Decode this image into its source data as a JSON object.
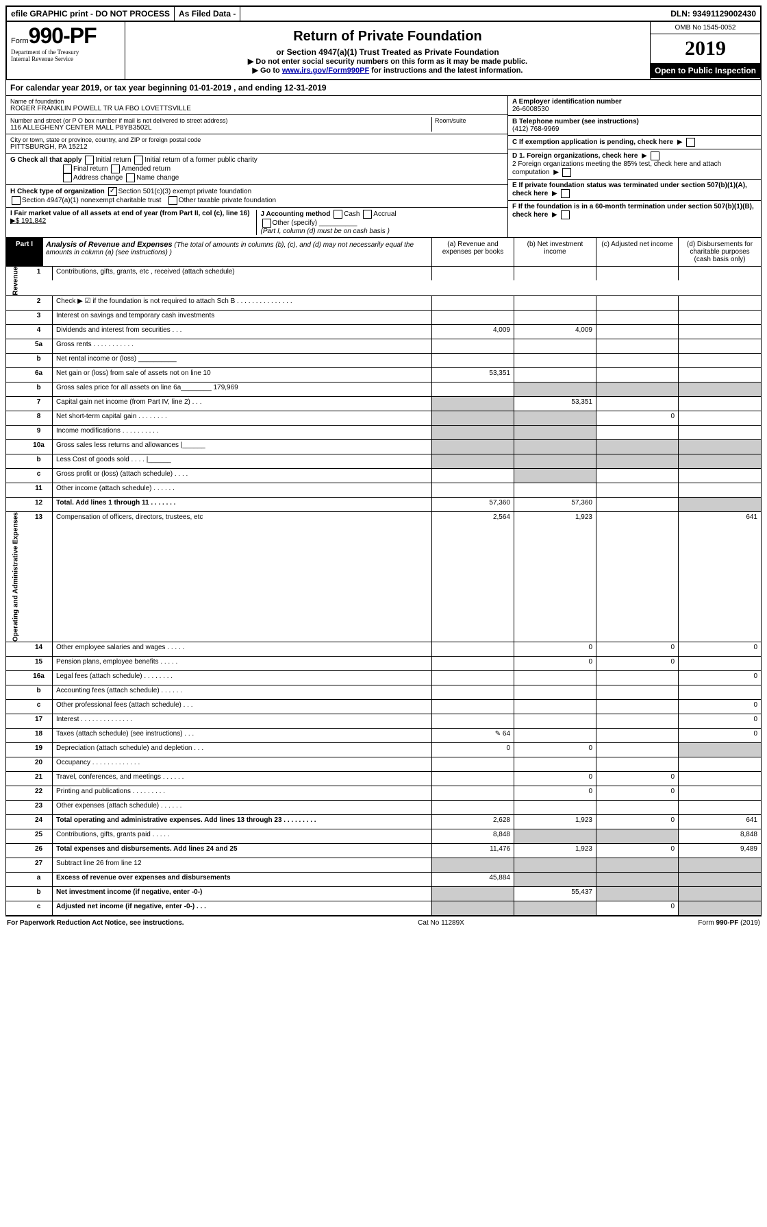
{
  "topbar": {
    "efile": "efile GRAPHIC print - DO NOT PROCESS",
    "asfiled": "As Filed Data -",
    "dln_label": "DLN:",
    "dln": "93491129002430"
  },
  "header": {
    "form_word": "Form",
    "form_no": "990-PF",
    "dept1": "Department of the Treasury",
    "dept2": "Internal Revenue Service",
    "title": "Return of Private Foundation",
    "subtitle": "or Section 4947(a)(1) Trust Treated as Private Foundation",
    "instr1": "▶ Do not enter social security numbers on this form as it may be made public.",
    "instr2_pre": "▶ Go to ",
    "instr2_link": "www.irs.gov/Form990PF",
    "instr2_post": " for instructions and the latest information.",
    "omb": "OMB No 1545-0052",
    "year": "2019",
    "open": "Open to Public Inspection"
  },
  "calyear": "For calendar year 2019, or tax year beginning 01-01-2019                , and ending 12-31-2019",
  "entity": {
    "name_lbl": "Name of foundation",
    "name": "ROGER FRANKLIN POWELL TR UA FBO LOVETTSVILLE",
    "addr_lbl": "Number and street (or P O  box number if mail is not delivered to street address)",
    "addr": "116 ALLEGHENY CENTER MALL P8YB3502L",
    "room_lbl": "Room/suite",
    "city_lbl": "City or town, state or province, country, and ZIP or foreign postal code",
    "city": "PITTSBURGH, PA  15212",
    "A_lbl": "A Employer identification number",
    "A": "26-6008530",
    "B_lbl": "B Telephone number (see instructions)",
    "B": "(412) 768-9969",
    "C": "C If exemption application is pending, check here",
    "G_lbl": "G Check all that apply",
    "G_opts": [
      "Initial return",
      "Initial return of a former public charity",
      "Final return",
      "Amended return",
      "Address change",
      "Name change"
    ],
    "H_lbl": "H Check type of organization",
    "H_501": "Section 501(c)(3) exempt private foundation",
    "H_4947": "Section 4947(a)(1) nonexempt charitable trust",
    "H_other": "Other taxable private foundation",
    "I_lbl": "I Fair market value of all assets at end of year (from Part II, col (c), line 16)",
    "I_val": "▶$ 191,842",
    "J_lbl": "J Accounting method",
    "J_cash": "Cash",
    "J_accrual": "Accrual",
    "J_other": "Other (specify)",
    "J_note": "(Part I, column (d) must be on cash basis )",
    "D1": "D 1. Foreign organizations, check here",
    "D2": "2 Foreign organizations meeting the 85% test, check here and attach computation",
    "E": "E If private foundation status was terminated under section 507(b)(1)(A), check here",
    "F": "F If the foundation is in a 60-month termination under section 507(b)(1)(B), check here"
  },
  "part1": {
    "badge": "Part I",
    "title_b": "Analysis of Revenue and Expenses",
    "title_rest": " (The total of amounts in columns (b), (c), and (d) may not necessarily equal the amounts in column (a) (see instructions) )",
    "cols": {
      "a": "(a) Revenue and expenses per books",
      "b": "(b) Net investment income",
      "c": "(c) Adjusted net income",
      "d": "(d) Disbursements for charitable purposes (cash basis only)"
    }
  },
  "sections": {
    "revenue": "Revenue",
    "expenses": "Operating and Administrative Expenses"
  },
  "rows": [
    {
      "sec": "r",
      "n": "1",
      "d": "Contributions, gifts, grants, etc , received (attach schedule)",
      "a": "",
      "b": "",
      "c": "",
      "dd": ""
    },
    {
      "sec": "r",
      "n": "2",
      "d": "Check ▶ ☑ if the foundation is not required to attach Sch B   . . . . . . . . . . . . . . .",
      "a": "",
      "b": "",
      "c": "",
      "dd": ""
    },
    {
      "sec": "r",
      "n": "3",
      "d": "Interest on savings and temporary cash investments",
      "a": "",
      "b": "",
      "c": "",
      "dd": ""
    },
    {
      "sec": "r",
      "n": "4",
      "d": "Dividends and interest from securities   . . .",
      "a": "4,009",
      "b": "4,009",
      "c": "",
      "dd": ""
    },
    {
      "sec": "r",
      "n": "5a",
      "d": "Gross rents   . . . . . . . . . . .",
      "a": "",
      "b": "",
      "c": "",
      "dd": ""
    },
    {
      "sec": "r",
      "n": "b",
      "d": "Net rental income or (loss)  __________",
      "a": "",
      "b": "",
      "c": "",
      "dd": ""
    },
    {
      "sec": "r",
      "n": "6a",
      "d": "Net gain or (loss) from sale of assets not on line 10",
      "a": "53,351",
      "b": "",
      "c": "",
      "dd": ""
    },
    {
      "sec": "r",
      "n": "b",
      "d": "Gross sales price for all assets on line 6a________ 179,969",
      "a": "",
      "b": "",
      "c": "",
      "dd": "",
      "grey": [
        "b",
        "c",
        "dd"
      ]
    },
    {
      "sec": "r",
      "n": "7",
      "d": "Capital gain net income (from Part IV, line 2)  . . .",
      "a": "",
      "b": "53,351",
      "c": "",
      "dd": "",
      "grey": [
        "a"
      ]
    },
    {
      "sec": "r",
      "n": "8",
      "d": "Net short-term capital gain   . . . . . . . .",
      "a": "",
      "b": "",
      "c": "0",
      "dd": "",
      "grey": [
        "a",
        "b"
      ]
    },
    {
      "sec": "r",
      "n": "9",
      "d": "Income modifications  . . . . . . . . . .",
      "a": "",
      "b": "",
      "c": "",
      "dd": "",
      "grey": [
        "a",
        "b"
      ]
    },
    {
      "sec": "r",
      "n": "10a",
      "d": "Gross sales less returns and allowances |______",
      "a": "",
      "b": "",
      "c": "",
      "dd": "",
      "grey": [
        "a",
        "b",
        "c",
        "dd"
      ]
    },
    {
      "sec": "r",
      "n": "b",
      "d": "Less  Cost of goods sold   . . . . |______",
      "a": "",
      "b": "",
      "c": "",
      "dd": "",
      "grey": [
        "a",
        "b",
        "c",
        "dd"
      ]
    },
    {
      "sec": "r",
      "n": "c",
      "d": "Gross profit or (loss) (attach schedule)   . . . .",
      "a": "",
      "b": "",
      "c": "",
      "dd": "",
      "grey": [
        "b"
      ]
    },
    {
      "sec": "r",
      "n": "11",
      "d": "Other income (attach schedule)   . . . . . .",
      "a": "",
      "b": "",
      "c": "",
      "dd": ""
    },
    {
      "sec": "r",
      "n": "12",
      "d": "Total. Add lines 1 through 11   . . . . . . .",
      "a": "57,360",
      "b": "57,360",
      "c": "",
      "dd": "",
      "bold": true,
      "grey": [
        "dd"
      ]
    },
    {
      "sec": "e",
      "n": "13",
      "d": "Compensation of officers, directors, trustees, etc",
      "a": "2,564",
      "b": "1,923",
      "c": "",
      "dd": "641"
    },
    {
      "sec": "e",
      "n": "14",
      "d": "Other employee salaries and wages   . . . . .",
      "a": "",
      "b": "0",
      "c": "0",
      "dd": "0"
    },
    {
      "sec": "e",
      "n": "15",
      "d": "Pension plans, employee benefits   . . . . .",
      "a": "",
      "b": "0",
      "c": "0",
      "dd": ""
    },
    {
      "sec": "e",
      "n": "16a",
      "d": "Legal fees (attach schedule)  . . . . . . . .",
      "a": "",
      "b": "",
      "c": "",
      "dd": "0"
    },
    {
      "sec": "e",
      "n": "b",
      "d": "Accounting fees (attach schedule)  . . . . . .",
      "a": "",
      "b": "",
      "c": "",
      "dd": ""
    },
    {
      "sec": "e",
      "n": "c",
      "d": "Other professional fees (attach schedule)   . . .",
      "a": "",
      "b": "",
      "c": "",
      "dd": "0"
    },
    {
      "sec": "e",
      "n": "17",
      "d": "Interest  . . . . . . . . . . . . . .",
      "a": "",
      "b": "",
      "c": "",
      "dd": "0"
    },
    {
      "sec": "e",
      "n": "18",
      "d": "Taxes (attach schedule) (see instructions)   . . .",
      "a": "✎          64",
      "b": "",
      "c": "",
      "dd": "0"
    },
    {
      "sec": "e",
      "n": "19",
      "d": "Depreciation (attach schedule) and depletion   . . .",
      "a": "0",
      "b": "0",
      "c": "",
      "dd": "",
      "grey": [
        "dd"
      ]
    },
    {
      "sec": "e",
      "n": "20",
      "d": "Occupancy   . . . . . . . . . . . . .",
      "a": "",
      "b": "",
      "c": "",
      "dd": ""
    },
    {
      "sec": "e",
      "n": "21",
      "d": "Travel, conferences, and meetings  . . . . . .",
      "a": "",
      "b": "0",
      "c": "0",
      "dd": ""
    },
    {
      "sec": "e",
      "n": "22",
      "d": "Printing and publications  . . . . . . . . .",
      "a": "",
      "b": "0",
      "c": "0",
      "dd": ""
    },
    {
      "sec": "e",
      "n": "23",
      "d": "Other expenses (attach schedule)  . . . . . .",
      "a": "",
      "b": "",
      "c": "",
      "dd": ""
    },
    {
      "sec": "e",
      "n": "24",
      "d": "Total operating and administrative expenses. Add lines 13 through 23   . . . . . . . . .",
      "a": "2,628",
      "b": "1,923",
      "c": "0",
      "dd": "641",
      "bold": true
    },
    {
      "sec": "e",
      "n": "25",
      "d": "Contributions, gifts, grants paid   . . . . .",
      "a": "8,848",
      "b": "",
      "c": "",
      "dd": "8,848",
      "grey": [
        "b",
        "c"
      ]
    },
    {
      "sec": "e",
      "n": "26",
      "d": "Total expenses and disbursements. Add lines 24 and 25",
      "a": "11,476",
      "b": "1,923",
      "c": "0",
      "dd": "9,489",
      "bold": true
    },
    {
      "sec": "",
      "n": "27",
      "d": "Subtract line 26 from line 12",
      "a": "",
      "b": "",
      "c": "",
      "dd": "",
      "grey": [
        "a",
        "b",
        "c",
        "dd"
      ]
    },
    {
      "sec": "",
      "n": "a",
      "d": "Excess of revenue over expenses and disbursements",
      "a": "45,884",
      "b": "",
      "c": "",
      "dd": "",
      "bold": true,
      "grey": [
        "b",
        "c",
        "dd"
      ]
    },
    {
      "sec": "",
      "n": "b",
      "d": "Net investment income (if negative, enter -0-)",
      "a": "",
      "b": "55,437",
      "c": "",
      "dd": "",
      "bold": true,
      "grey": [
        "a",
        "c",
        "dd"
      ]
    },
    {
      "sec": "",
      "n": "c",
      "d": "Adjusted net income (if negative, enter -0-)   . . .",
      "a": "",
      "b": "",
      "c": "0",
      "dd": "",
      "bold": true,
      "grey": [
        "a",
        "b",
        "dd"
      ]
    }
  ],
  "footer": {
    "left": "For Paperwork Reduction Act Notice, see instructions.",
    "mid": "Cat No 11289X",
    "right": "Form 990-PF (2019)"
  }
}
